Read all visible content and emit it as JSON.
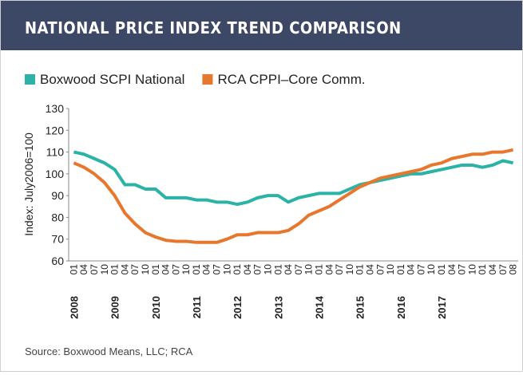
{
  "chart_data": {
    "type": "line",
    "title": "NATIONAL PRICE INDEX TREND COMPARISON",
    "y_label": "Index: July2006=100",
    "source": "Source: Boxwood Means, LLC; RCA",
    "categories": [
      "01",
      "04",
      "07",
      "10",
      "01",
      "04",
      "07",
      "10",
      "01",
      "04",
      "07",
      "10",
      "01",
      "04",
      "07",
      "10",
      "01",
      "04",
      "07",
      "10",
      "01",
      "04",
      "07",
      "10",
      "01",
      "04",
      "07",
      "10",
      "01",
      "04",
      "07",
      "10",
      "01",
      "04",
      "07",
      "10",
      "01",
      "04",
      "07",
      "10",
      "01",
      "04",
      "07",
      "08"
    ],
    "years": [
      "2008",
      "2009",
      "2010",
      "2011",
      "2012",
      "2013",
      "2014",
      "2015",
      "2016",
      "2017"
    ],
    "series": [
      {
        "name": "Boxwood SCPI National",
        "color": "#2ab3a6",
        "values": [
          110,
          109,
          107,
          105,
          102,
          95,
          95,
          93,
          93,
          89,
          89,
          89,
          88,
          88,
          87,
          87,
          86,
          87,
          89,
          90,
          90,
          87,
          89,
          90,
          91,
          91,
          91,
          93,
          95,
          96,
          97,
          98,
          99,
          100,
          100,
          101,
          102,
          103,
          104,
          104,
          103,
          104,
          106,
          105
        ]
      },
      {
        "name": "RCA CPPI–Core Comm.",
        "color": "#e8772e",
        "values": [
          105,
          103,
          100,
          96,
          90,
          82,
          77,
          73,
          71,
          69.5,
          69,
          69,
          68.5,
          68.5,
          68.5,
          70,
          72,
          72,
          73,
          73,
          73,
          74,
          77,
          81,
          83,
          85,
          88,
          91,
          94,
          96,
          98,
          99,
          100,
          101,
          102,
          104,
          105,
          107,
          108,
          109,
          109,
          110,
          110,
          111
        ]
      }
    ],
    "ylim": [
      60,
      130
    ],
    "yticks": [
      60,
      70,
      80,
      90,
      100,
      110,
      120,
      130
    ]
  }
}
